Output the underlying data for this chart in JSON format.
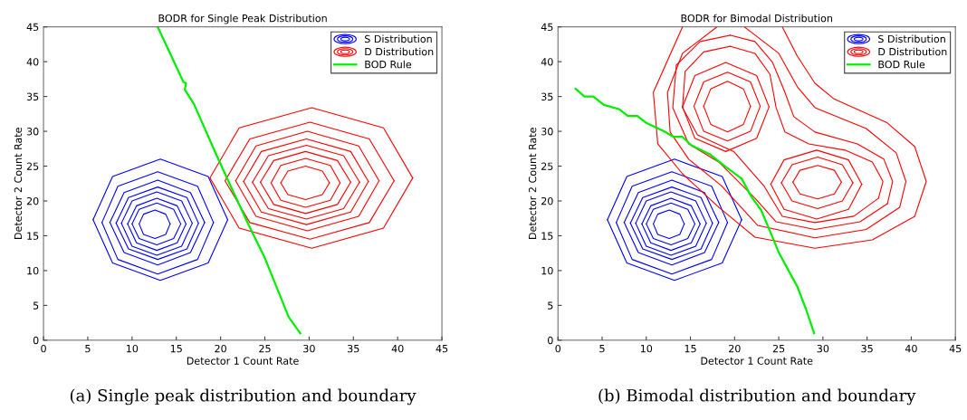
{
  "chart_data": [
    {
      "type": "line",
      "title": "BODR for Single Peak Distribution",
      "xlabel": "Detector 1 Count Rate",
      "ylabel": "Detector 2 Count Rate",
      "xlim": [
        0,
        45
      ],
      "ylim": [
        0,
        45
      ],
      "xticks": [
        0,
        5,
        10,
        15,
        20,
        25,
        30,
        35,
        40,
        45
      ],
      "yticks": [
        0,
        5,
        10,
        15,
        20,
        25,
        30,
        35,
        40,
        45
      ],
      "grid": false,
      "legend": "top right",
      "annotations": [
        "(a) Single peak distribution and boundary"
      ],
      "series": [
        {
          "name": "S Distribution",
          "color": "#0000ff",
          "x": [
            20.8,
            18.6,
            13.2,
            7.8,
            5.6,
            7.8,
            13.2,
            18.6,
            20.8
          ],
          "values": [
            17.3,
            23.5,
            26.0,
            23.5,
            17.3,
            11.1,
            8.6,
            11.1,
            17.3
          ]
        },
        {
          "color": "#0000ff",
          "x": [
            19.2,
            17.4,
            12.9,
            8.4,
            6.6,
            8.4,
            12.9,
            17.4,
            19.2
          ],
          "values": [
            16.9,
            22.1,
            24.2,
            22.1,
            16.9,
            11.6,
            9.5,
            11.6,
            16.9
          ]
        },
        {
          "color": "#0000ff",
          "x": [
            18.2,
            16.6,
            12.9,
            9.1,
            7.5,
            9.1,
            12.9,
            16.6,
            18.2
          ],
          "values": [
            16.9,
            21.2,
            23.0,
            21.2,
            16.9,
            12.6,
            10.8,
            12.6,
            16.9
          ]
        },
        {
          "color": "#0000ff",
          "x": [
            17.5,
            16.2,
            12.9,
            9.6,
            8.2,
            9.6,
            12.9,
            16.2,
            17.5
          ],
          "values": [
            16.8,
            20.5,
            22.0,
            20.5,
            16.8,
            13.1,
            11.6,
            13.1,
            16.8
          ]
        },
        {
          "color": "#0000ff",
          "x": [
            16.8,
            15.6,
            12.8,
            10.0,
            8.8,
            10.0,
            12.8,
            15.6,
            16.8
          ],
          "values": [
            16.8,
            20.0,
            21.3,
            20.0,
            16.8,
            13.5,
            12.2,
            13.5,
            16.8
          ]
        },
        {
          "color": "#0000ff",
          "x": [
            16.1,
            15.1,
            12.8,
            10.5,
            9.5,
            10.5,
            12.8,
            15.1,
            16.1
          ],
          "values": [
            16.7,
            19.3,
            20.4,
            19.3,
            16.7,
            14.0,
            12.9,
            14.0,
            16.7
          ]
        },
        {
          "color": "#0000ff",
          "x": [
            15.5,
            14.7,
            12.8,
            10.8,
            10.0,
            10.8,
            12.8,
            14.7,
            15.5
          ],
          "values": [
            16.7,
            18.8,
            19.7,
            18.8,
            16.7,
            14.6,
            13.7,
            14.6,
            16.7
          ]
        },
        {
          "color": "#0000ff",
          "x": [
            14.3,
            13.8,
            12.6,
            11.3,
            10.8,
            11.3,
            12.6,
            13.8,
            14.3
          ],
          "values": [
            16.7,
            18.1,
            18.7,
            18.1,
            16.7,
            15.2,
            14.6,
            15.2,
            16.7
          ]
        },
        {
          "name": "D Distribution",
          "color": "#ff0000",
          "x": [
            41.7,
            38.4,
            30.3,
            22.1,
            18.8,
            22.1,
            30.3,
            38.4,
            41.7
          ],
          "values": [
            23.3,
            30.5,
            33.4,
            30.5,
            23.3,
            16.1,
            13.2,
            16.1,
            23.3
          ]
        },
        {
          "color": "#ff0000",
          "x": [
            39.6,
            36.8,
            30.1,
            23.3,
            20.5,
            23.3,
            30.1,
            36.8,
            39.6
          ],
          "values": [
            22.9,
            28.9,
            31.3,
            28.9,
            22.9,
            16.9,
            14.5,
            16.9,
            22.9
          ]
        },
        {
          "color": "#ff0000",
          "x": [
            37.9,
            35.6,
            29.8,
            24.0,
            21.7,
            24.0,
            29.8,
            35.6,
            37.9
          ],
          "values": [
            22.9,
            27.9,
            30.0,
            27.9,
            22.9,
            17.8,
            15.7,
            17.8,
            22.9
          ]
        },
        {
          "color": "#ff0000",
          "x": [
            36.7,
            34.7,
            29.7,
            24.6,
            22.6,
            24.6,
            29.7,
            34.7,
            36.7
          ],
          "values": [
            22.8,
            27.1,
            28.9,
            27.1,
            22.8,
            18.4,
            16.6,
            18.4,
            22.8
          ]
        },
        {
          "color": "#ff0000",
          "x": [
            35.7,
            33.9,
            29.7,
            25.4,
            23.6,
            25.4,
            29.7,
            33.9,
            35.7
          ],
          "values": [
            22.7,
            26.5,
            28.0,
            26.5,
            22.7,
            18.9,
            17.4,
            18.9,
            22.7
          ]
        },
        {
          "color": "#ff0000",
          "x": [
            34.7,
            33.2,
            29.6,
            26.0,
            24.5,
            26.0,
            29.6,
            33.2,
            34.7
          ],
          "values": [
            22.7,
            25.8,
            27.1,
            25.8,
            22.7,
            19.5,
            18.2,
            19.5,
            22.7
          ]
        },
        {
          "color": "#ff0000",
          "x": [
            33.5,
            32.4,
            29.6,
            26.8,
            25.7,
            26.8,
            29.6,
            32.4,
            33.5
          ],
          "values": [
            22.6,
            25.1,
            26.1,
            25.1,
            22.6,
            20.1,
            19.1,
            20.1,
            22.6
          ]
        },
        {
          "color": "#ff0000",
          "x": [
            32.3,
            31.5,
            29.6,
            27.6,
            26.8,
            27.6,
            29.6,
            31.5,
            32.3
          ],
          "values": [
            22.6,
            24.3,
            25.0,
            24.3,
            22.6,
            20.9,
            20.2,
            20.9,
            22.6
          ]
        },
        {
          "name": "BOD Rule",
          "color": "#00ee00",
          "x": [
            12.9,
            15.8,
            16.1,
            15.95,
            17.0,
            19.5,
            20.9,
            23.0,
            25.0,
            27.7,
            29.0
          ],
          "values": [
            45,
            37.1,
            36.9,
            36.0,
            33.9,
            26.7,
            22.8,
            17.0,
            11.8,
            3.3,
            1.0
          ]
        }
      ]
    },
    {
      "type": "line",
      "title": "BODR for Bimodal Distribution",
      "xlabel": "Detector 1 Count Rate",
      "ylabel": "Detector 2 Count Rate",
      "xlim": [
        0,
        45
      ],
      "ylim": [
        0,
        45
      ],
      "xticks": [
        0,
        5,
        10,
        15,
        20,
        25,
        30,
        35,
        40,
        45
      ],
      "yticks": [
        0,
        5,
        10,
        15,
        20,
        25,
        30,
        35,
        40,
        45
      ],
      "grid": false,
      "legend": "top right",
      "annotations": [
        "(b) Bimodal distribution and boundary"
      ],
      "series": [
        {
          "name": "S Distribution",
          "color": "#0000ff",
          "x": [
            20.8,
            18.6,
            13.2,
            7.8,
            5.6,
            7.8,
            13.2,
            18.6,
            20.8
          ],
          "values": [
            17.3,
            23.5,
            26.0,
            23.5,
            17.3,
            11.1,
            8.6,
            11.1,
            17.3
          ]
        },
        {
          "color": "#0000ff",
          "x": [
            19.2,
            17.4,
            12.9,
            8.4,
            6.6,
            8.4,
            12.9,
            17.4,
            19.2
          ],
          "values": [
            16.9,
            22.1,
            24.2,
            22.1,
            16.9,
            11.6,
            9.5,
            11.6,
            16.9
          ]
        },
        {
          "color": "#0000ff",
          "x": [
            18.2,
            16.6,
            12.9,
            9.1,
            7.5,
            9.1,
            12.9,
            16.6,
            18.2
          ],
          "values": [
            16.9,
            21.2,
            23.0,
            21.2,
            16.9,
            12.6,
            10.8,
            12.6,
            16.9
          ]
        },
        {
          "color": "#0000ff",
          "x": [
            17.5,
            16.2,
            12.9,
            9.6,
            8.2,
            9.6,
            12.9,
            16.2,
            17.5
          ],
          "values": [
            16.8,
            20.5,
            22.0,
            20.5,
            16.8,
            13.1,
            11.6,
            13.1,
            16.8
          ]
        },
        {
          "color": "#0000ff",
          "x": [
            16.8,
            15.6,
            12.8,
            10.0,
            8.8,
            10.0,
            12.8,
            15.6,
            16.8
          ],
          "values": [
            16.8,
            20.0,
            21.3,
            20.0,
            16.8,
            13.5,
            12.2,
            13.5,
            16.8
          ]
        },
        {
          "color": "#0000ff",
          "x": [
            16.1,
            15.1,
            12.8,
            10.5,
            9.5,
            10.5,
            12.8,
            15.1,
            16.1
          ],
          "values": [
            16.7,
            19.3,
            20.4,
            19.3,
            16.7,
            14.0,
            12.9,
            14.0,
            16.7
          ]
        },
        {
          "color": "#0000ff",
          "x": [
            15.5,
            14.7,
            12.8,
            10.8,
            10.0,
            10.8,
            12.8,
            14.7,
            15.5
          ],
          "values": [
            16.7,
            18.8,
            19.7,
            18.8,
            16.7,
            14.6,
            13.7,
            14.6,
            16.7
          ]
        },
        {
          "color": "#0000ff",
          "x": [
            14.3,
            13.8,
            12.6,
            11.3,
            10.8,
            11.3,
            12.6,
            13.8,
            14.3
          ],
          "values": [
            16.7,
            18.1,
            18.7,
            18.1,
            16.7,
            15.2,
            14.6,
            15.2,
            16.7
          ]
        },
        {
          "name": "D Distribution",
          "color": "#ff0000",
          "x": [
            19.5,
            16.1,
            13.4,
            13.0,
            14.8,
            18.2,
            22.3,
            24.7,
            29.1,
            34.2,
            37.3,
            37.9,
            36.9,
            33.9,
            29.1,
            26.7,
            25.7,
            24.3,
            22.3,
            19.5
          ],
          "values": [
            43.8,
            42.9,
            39.5,
            33.4,
            28.2,
            25.6,
            20.4,
            17.0,
            15.9,
            17.0,
            19.6,
            22.8,
            26.0,
            28.2,
            29.9,
            32.1,
            35.6,
            39.9,
            42.9,
            43.8
          ]
        },
        {
          "color": "#ff0000",
          "x": [
            14.1,
            10.8,
            11.3,
            14.1,
            18.2,
            22.3,
            29.1,
            35.6,
            40.4,
            41.7,
            40.4,
            37.3,
            31.2,
            29.1,
            27.1,
            25.4
          ],
          "values": [
            45,
            35.6,
            28.2,
            23.9,
            19.1,
            14.8,
            13.2,
            14.4,
            17.8,
            22.8,
            27.8,
            31.2,
            34.7,
            36.9,
            40.8,
            45
          ]
        },
        {
          "color": "#ff0000",
          "x": [
            18.0,
            14.1,
            12.4,
            12.7,
            14.8,
            18.5,
            22.6,
            29.1,
            34.9,
            38.7,
            39.4,
            38.3,
            34.9,
            29.1,
            27.1,
            25.0,
            21.1
          ],
          "values": [
            45,
            41.2,
            35.6,
            29.9,
            26.0,
            22.2,
            16.5,
            14.7,
            15.9,
            19.1,
            22.8,
            26.9,
            30.4,
            33.4,
            36.4,
            41.2,
            45
          ]
        },
        {
          "color": "#ff0000",
          "x": [
            19.5,
            16.5,
            14.4,
            14.1,
            15.8,
            19.9,
            23.3,
            25.4,
            29.1,
            33.5,
            36.3,
            36.8,
            35.6,
            32.5,
            28.4,
            25.7,
            24.7,
            24.0,
            22.3,
            19.5
          ],
          "values": [
            42.2,
            41.4,
            38.6,
            33.4,
            29.5,
            27.1,
            22.2,
            17.8,
            16.9,
            17.8,
            20.4,
            22.8,
            25.6,
            27.3,
            28.2,
            29.9,
            33.4,
            38.2,
            41.2,
            42.2
          ]
        },
        {
          "color": "#ff0000",
          "x": [
            23.9,
            22.5,
            19.0,
            15.5,
            14.1,
            15.5,
            19.0,
            22.5,
            23.9
          ],
          "values": [
            33.5,
            38.0,
            39.9,
            38.0,
            33.5,
            29.0,
            27.1,
            29.0,
            33.5
          ]
        },
        {
          "color": "#ff0000",
          "x": [
            22.9,
            21.8,
            19.2,
            16.5,
            15.4,
            16.5,
            19.2,
            21.8,
            22.9
          ],
          "values": [
            33.6,
            37.1,
            38.5,
            37.1,
            33.6,
            30.0,
            28.6,
            30.0,
            33.6
          ]
        },
        {
          "color": "#ff0000",
          "x": [
            21.8,
            21.0,
            19.2,
            17.3,
            16.5,
            17.3,
            19.2,
            21.0,
            21.8
          ],
          "values": [
            33.6,
            36.1,
            37.2,
            36.1,
            33.6,
            31.0,
            29.9,
            31.0,
            33.6
          ]
        },
        {
          "color": "#ff0000",
          "x": [
            34.4,
            32.9,
            29.3,
            25.6,
            24.1,
            25.6,
            29.3,
            32.9,
            34.4
          ],
          "values": [
            22.4,
            25.9,
            27.3,
            25.9,
            22.4,
            18.8,
            17.4,
            18.8,
            22.4
          ]
        },
        {
          "color": "#ff0000",
          "x": [
            33.4,
            32.2,
            29.4,
            26.5,
            25.3,
            26.5,
            29.4,
            32.2,
            33.4
          ],
          "values": [
            22.6,
            25.2,
            26.3,
            25.2,
            22.6,
            20.0,
            18.9,
            20.0,
            22.6
          ]
        },
        {
          "color": "#ff0000",
          "x": [
            32.1,
            31.3,
            29.4,
            27.4,
            26.6,
            27.4,
            29.4,
            31.3,
            32.1
          ],
          "values": [
            22.7,
            24.4,
            25.1,
            24.4,
            22.7,
            21.0,
            20.3,
            21.0,
            22.7
          ]
        },
        {
          "name": "BOD Rule",
          "color": "#00ee00",
          "x": [
            2.0,
            3.0,
            4.0,
            5.2,
            6.9,
            7.9,
            9.0,
            10.0,
            12.0,
            13.1,
            14.1,
            15.1,
            17.2,
            18.9,
            20.8,
            21.9,
            23.0,
            24.0,
            25.0,
            27.1,
            28.1,
            29.0
          ],
          "values": [
            36.1,
            35.0,
            35.0,
            33.8,
            33.2,
            32.2,
            32.2,
            31.2,
            30.0,
            29.2,
            29.2,
            28.0,
            26.7,
            25.0,
            23.2,
            20.6,
            18.7,
            15.7,
            12.6,
            7.7,
            4.4,
            1.0
          ]
        }
      ]
    }
  ]
}
